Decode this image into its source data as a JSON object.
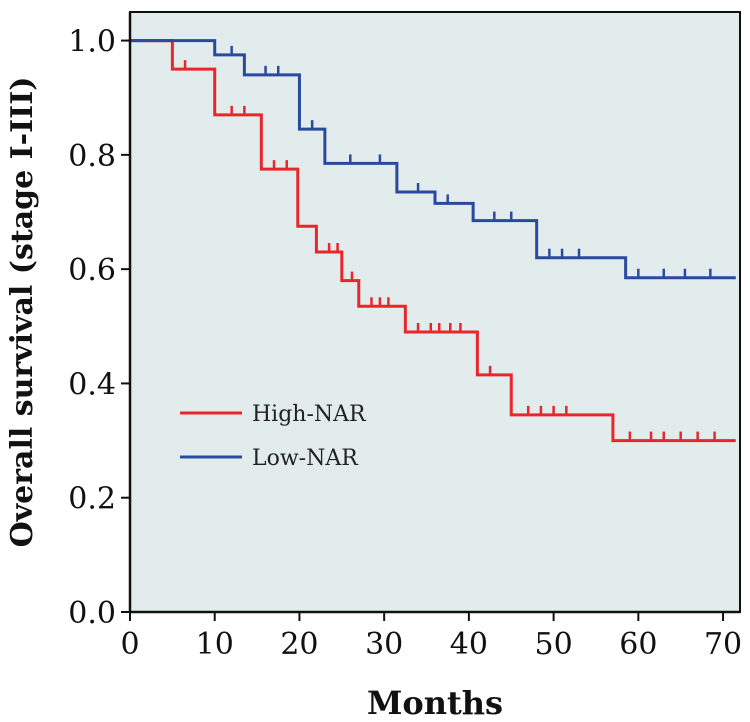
{
  "chart_data": {
    "type": "line",
    "subtype": "kaplan-meier-step",
    "xlabel": "Months",
    "ylabel": "Overall survival (stage I-III)",
    "xlim": [
      0,
      72
    ],
    "ylim": [
      0,
      1.05
    ],
    "x_ticks": [
      0,
      10,
      20,
      30,
      40,
      50,
      60,
      70
    ],
    "y_ticks": [
      "0.0",
      "0.2",
      "0.4",
      "0.6",
      "0.8",
      "1.0"
    ],
    "grid": false,
    "legend_position": "lower-left",
    "background_color": "#e3ecec",
    "series": [
      {
        "name": "High-NAR",
        "color": "#e8262b",
        "steps": [
          [
            0,
            1.0
          ],
          [
            5,
            0.95
          ],
          [
            10,
            0.87
          ],
          [
            15.5,
            0.775
          ],
          [
            19.8,
            0.675
          ],
          [
            22,
            0.63
          ],
          [
            25,
            0.58
          ],
          [
            27,
            0.535
          ],
          [
            32.5,
            0.49
          ],
          [
            41,
            0.415
          ],
          [
            45,
            0.345
          ],
          [
            57,
            0.3
          ],
          [
            71.5,
            0.3
          ]
        ],
        "censored": [
          [
            6.5,
            0.95
          ],
          [
            12,
            0.87
          ],
          [
            13.5,
            0.87
          ],
          [
            17,
            0.775
          ],
          [
            18.5,
            0.775
          ],
          [
            23.5,
            0.63
          ],
          [
            24.5,
            0.63
          ],
          [
            26.2,
            0.58
          ],
          [
            28.5,
            0.535
          ],
          [
            29.5,
            0.535
          ],
          [
            30.5,
            0.535
          ],
          [
            34,
            0.49
          ],
          [
            35.5,
            0.49
          ],
          [
            36.5,
            0.49
          ],
          [
            37.8,
            0.49
          ],
          [
            39,
            0.49
          ],
          [
            42.5,
            0.415
          ],
          [
            47,
            0.345
          ],
          [
            48.5,
            0.345
          ],
          [
            50,
            0.345
          ],
          [
            51.5,
            0.345
          ],
          [
            59,
            0.3
          ],
          [
            61.5,
            0.3
          ],
          [
            63,
            0.3
          ],
          [
            65,
            0.3
          ],
          [
            67,
            0.3
          ],
          [
            69,
            0.3
          ]
        ]
      },
      {
        "name": "Low-NAR",
        "color": "#2a4aa0",
        "steps": [
          [
            0,
            1.0
          ],
          [
            10,
            0.975
          ],
          [
            13.5,
            0.94
          ],
          [
            20,
            0.845
          ],
          [
            23,
            0.785
          ],
          [
            31.5,
            0.735
          ],
          [
            36,
            0.715
          ],
          [
            40.5,
            0.685
          ],
          [
            48,
            0.62
          ],
          [
            58.5,
            0.585
          ],
          [
            71.5,
            0.585
          ]
        ],
        "censored": [
          [
            12,
            0.975
          ],
          [
            16,
            0.94
          ],
          [
            17.5,
            0.94
          ],
          [
            21.5,
            0.845
          ],
          [
            26,
            0.785
          ],
          [
            29.5,
            0.785
          ],
          [
            34,
            0.735
          ],
          [
            37.5,
            0.715
          ],
          [
            43,
            0.685
          ],
          [
            45,
            0.685
          ],
          [
            49.5,
            0.62
          ],
          [
            51,
            0.62
          ],
          [
            53,
            0.62
          ],
          [
            60,
            0.585
          ],
          [
            63,
            0.585
          ],
          [
            65.5,
            0.585
          ],
          [
            68.5,
            0.585
          ]
        ]
      }
    ]
  }
}
